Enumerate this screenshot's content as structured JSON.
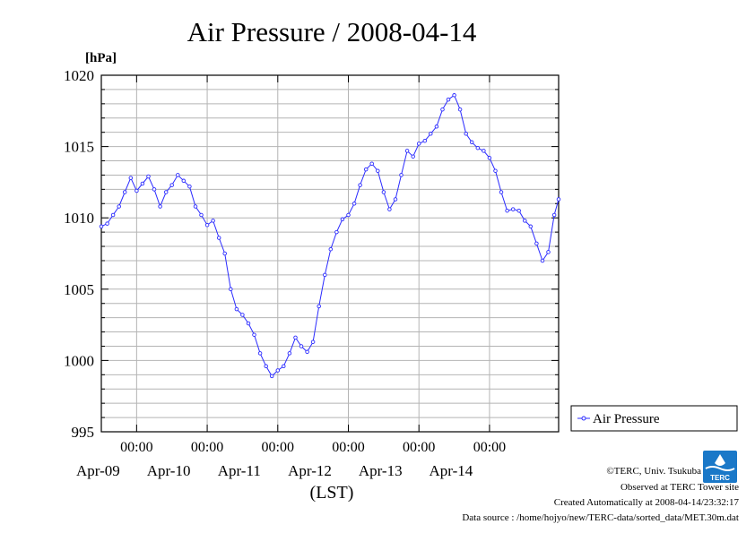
{
  "chart_data": {
    "type": "line",
    "title": "Air Pressure / 2008-04-14",
    "ylabel": "[hPa]",
    "xlabel": "(LST)",
    "ylim": [
      995,
      1020
    ],
    "yticks": [
      995,
      1000,
      1005,
      1010,
      1015,
      1020
    ],
    "xlim": [
      "2008-04-08 12:00",
      "2008-04-14 23:30"
    ],
    "x_tick_labels": [
      {
        "time": "00:00",
        "date": "Apr-09",
        "at": "2008-04-09 00:00"
      },
      {
        "time": "00:00",
        "date": "Apr-10",
        "at": "2008-04-10 00:00"
      },
      {
        "time": "00:00",
        "date": "Apr-11",
        "at": "2008-04-11 00:00"
      },
      {
        "time": "00:00",
        "date": "Apr-12",
        "at": "2008-04-12 00:00"
      },
      {
        "time": "00:00",
        "date": "Apr-13",
        "at": "2008-04-13 00:00"
      },
      {
        "time": "00:00",
        "date": "Apr-14",
        "at": "2008-04-14 00:00"
      }
    ],
    "grid": true,
    "legend_position": "right",
    "series": [
      {
        "name": "Air Pressure",
        "color": "#2b2bff",
        "points": [
          [
            "2008-04-08 12:00",
            1009.4
          ],
          [
            "2008-04-08 14:00",
            1009.6
          ],
          [
            "2008-04-08 16:00",
            1010.2
          ],
          [
            "2008-04-08 18:00",
            1010.8
          ],
          [
            "2008-04-08 20:00",
            1011.8
          ],
          [
            "2008-04-08 22:00",
            1012.8
          ],
          [
            "2008-04-09 00:00",
            1011.9
          ],
          [
            "2008-04-09 02:00",
            1012.4
          ],
          [
            "2008-04-09 04:00",
            1012.9
          ],
          [
            "2008-04-09 06:00",
            1012.0
          ],
          [
            "2008-04-09 08:00",
            1010.8
          ],
          [
            "2008-04-09 10:00",
            1011.8
          ],
          [
            "2008-04-09 12:00",
            1012.3
          ],
          [
            "2008-04-09 14:00",
            1013.0
          ],
          [
            "2008-04-09 16:00",
            1012.6
          ],
          [
            "2008-04-09 18:00",
            1012.2
          ],
          [
            "2008-04-09 20:00",
            1010.8
          ],
          [
            "2008-04-09 22:00",
            1010.2
          ],
          [
            "2008-04-10 00:00",
            1009.5
          ],
          [
            "2008-04-10 02:00",
            1009.8
          ],
          [
            "2008-04-10 04:00",
            1008.6
          ],
          [
            "2008-04-10 06:00",
            1007.5
          ],
          [
            "2008-04-10 08:00",
            1005.0
          ],
          [
            "2008-04-10 10:00",
            1003.6
          ],
          [
            "2008-04-10 12:00",
            1003.2
          ],
          [
            "2008-04-10 14:00",
            1002.6
          ],
          [
            "2008-04-10 16:00",
            1001.8
          ],
          [
            "2008-04-10 18:00",
            1000.5
          ],
          [
            "2008-04-10 20:00",
            999.6
          ],
          [
            "2008-04-10 22:00",
            998.9
          ],
          [
            "2008-04-11 00:00",
            999.3
          ],
          [
            "2008-04-11 02:00",
            999.6
          ],
          [
            "2008-04-11 04:00",
            1000.5
          ],
          [
            "2008-04-11 06:00",
            1001.6
          ],
          [
            "2008-04-11 08:00",
            1001.0
          ],
          [
            "2008-04-11 10:00",
            1000.6
          ],
          [
            "2008-04-11 12:00",
            1001.3
          ],
          [
            "2008-04-11 14:00",
            1003.8
          ],
          [
            "2008-04-11 16:00",
            1006.0
          ],
          [
            "2008-04-11 18:00",
            1007.8
          ],
          [
            "2008-04-11 20:00",
            1009.0
          ],
          [
            "2008-04-11 22:00",
            1009.9
          ],
          [
            "2008-04-12 00:00",
            1010.2
          ],
          [
            "2008-04-12 02:00",
            1011.0
          ],
          [
            "2008-04-12 04:00",
            1012.3
          ],
          [
            "2008-04-12 06:00",
            1013.4
          ],
          [
            "2008-04-12 08:00",
            1013.8
          ],
          [
            "2008-04-12 10:00",
            1013.3
          ],
          [
            "2008-04-12 12:00",
            1011.8
          ],
          [
            "2008-04-12 14:00",
            1010.6
          ],
          [
            "2008-04-12 16:00",
            1011.3
          ],
          [
            "2008-04-12 18:00",
            1013.0
          ],
          [
            "2008-04-12 20:00",
            1014.7
          ],
          [
            "2008-04-12 22:00",
            1014.3
          ],
          [
            "2008-04-13 00:00",
            1015.2
          ],
          [
            "2008-04-13 02:00",
            1015.4
          ],
          [
            "2008-04-13 04:00",
            1015.9
          ],
          [
            "2008-04-13 06:00",
            1016.4
          ],
          [
            "2008-04-13 08:00",
            1017.6
          ],
          [
            "2008-04-13 10:00",
            1018.3
          ],
          [
            "2008-04-13 12:00",
            1018.6
          ],
          [
            "2008-04-13 14:00",
            1017.6
          ],
          [
            "2008-04-13 16:00",
            1015.9
          ],
          [
            "2008-04-13 18:00",
            1015.3
          ],
          [
            "2008-04-13 20:00",
            1014.9
          ],
          [
            "2008-04-13 22:00",
            1014.7
          ],
          [
            "2008-04-14 00:00",
            1014.2
          ],
          [
            "2008-04-14 02:00",
            1013.3
          ],
          [
            "2008-04-14 04:00",
            1011.8
          ],
          [
            "2008-04-14 06:00",
            1010.5
          ],
          [
            "2008-04-14 08:00",
            1010.6
          ],
          [
            "2008-04-14 10:00",
            1010.5
          ],
          [
            "2008-04-14 12:00",
            1009.8
          ],
          [
            "2008-04-14 14:00",
            1009.4
          ],
          [
            "2008-04-14 16:00",
            1008.2
          ],
          [
            "2008-04-14 18:00",
            1007.0
          ],
          [
            "2008-04-14 20:00",
            1007.6
          ],
          [
            "2008-04-14 22:00",
            1010.2
          ],
          [
            "2008-04-14 23:30",
            1011.3
          ]
        ]
      }
    ]
  },
  "footer": {
    "copyright": "©TERC, Univ. Tsukuba",
    "observed": "Observed at TERC Tower site",
    "created": "Created Automatically at 2008-04-14/23:32:17",
    "source": "Data source : /home/hojyo/new/TERC-data/sorted_data/MET.30m.dat"
  },
  "logo": {
    "text": "TERC",
    "color": "#1a78c8"
  }
}
